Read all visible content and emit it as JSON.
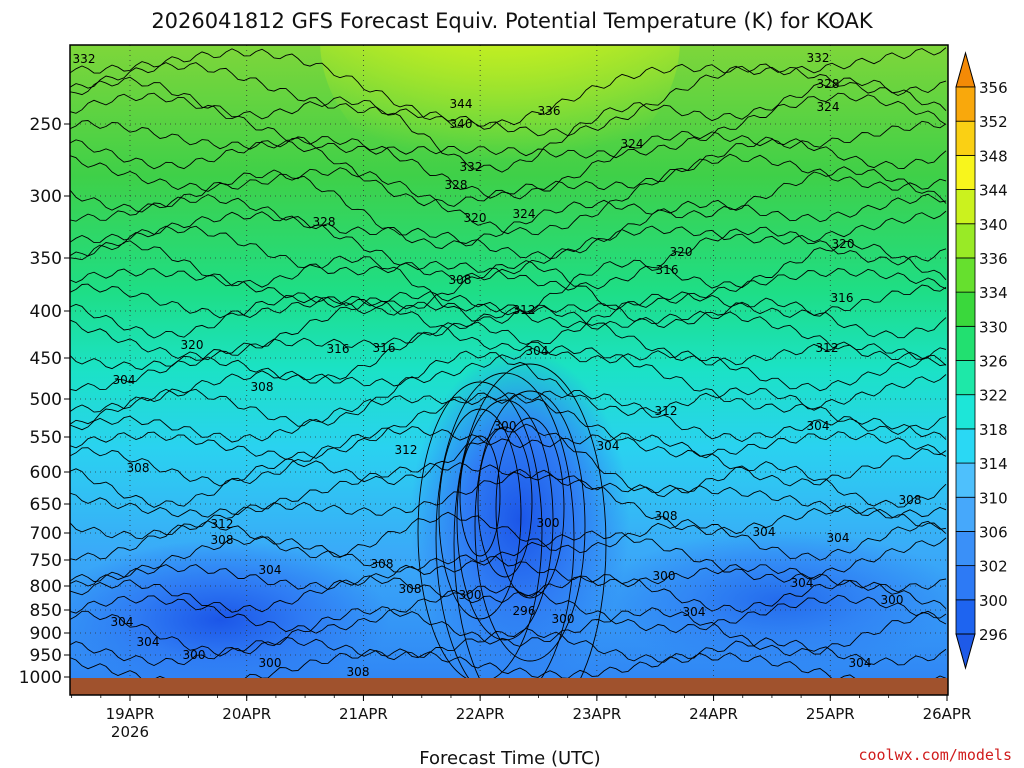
{
  "chart_data": {
    "type": "heatmap",
    "title": "2026041812 GFS Forecast Equiv. Potential Temperature (K) for KOAK",
    "xlabel": "Forecast Time (UTC)",
    "ylabel": "",
    "credit": "coolwx.com/models",
    "x_ticks": [
      {
        "label": "19APR",
        "sublabel": "2026",
        "hour": 12
      },
      {
        "label": "20APR",
        "sublabel": "",
        "hour": 36
      },
      {
        "label": "21APR",
        "sublabel": "",
        "hour": 60
      },
      {
        "label": "22APR",
        "sublabel": "",
        "hour": 84
      },
      {
        "label": "23APR",
        "sublabel": "",
        "hour": 108
      },
      {
        "label": "24APR",
        "sublabel": "",
        "hour": 132
      },
      {
        "label": "25APR",
        "sublabel": "",
        "hour": 156
      },
      {
        "label": "26APR",
        "sublabel": "",
        "hour": 180
      }
    ],
    "xlim_hours": [
      0,
      180
    ],
    "y_ticks": [
      "250",
      "300",
      "350",
      "400",
      "450",
      "500",
      "550",
      "600",
      "650",
      "700",
      "750",
      "800",
      "850",
      "900",
      "950",
      "1000"
    ],
    "y_tick_values": [
      250,
      300,
      350,
      400,
      450,
      500,
      550,
      600,
      650,
      700,
      750,
      800,
      850,
      900,
      950,
      1000
    ],
    "ylim_hpa": [
      200,
      1000
    ],
    "colorbar_levels": [
      "296",
      "300",
      "302",
      "306",
      "310",
      "314",
      "318",
      "322",
      "326",
      "330",
      "334",
      "336",
      "340",
      "344",
      "348",
      "352",
      "356"
    ],
    "colorbar_colors": [
      "#1e64f0",
      "#2d7af5",
      "#3a90f8",
      "#46a8fb",
      "#4ec0fc",
      "#2ad8f4",
      "#1de6d8",
      "#1ee8a8",
      "#22e070",
      "#3ad83c",
      "#66e02e",
      "#99ea26",
      "#cbf21e",
      "#f8f51c",
      "#fad014",
      "#f9a80c",
      "#f48a06"
    ],
    "contour_labels": [
      "332",
      "344",
      "340",
      "336",
      "332",
      "328",
      "324",
      "328",
      "320",
      "324",
      "332",
      "328",
      "324",
      "308",
      "320",
      "316",
      "312",
      "320",
      "316",
      "320",
      "316",
      "304",
      "316",
      "312",
      "312",
      "300",
      "304",
      "312",
      "308",
      "312",
      "308",
      "304",
      "304",
      "300",
      "304",
      "308",
      "300",
      "296",
      "300",
      "300",
      "300",
      "308",
      "304",
      "308",
      "304",
      "308",
      "304",
      "300",
      "304",
      "300",
      "304",
      "308",
      "304",
      "304",
      "308"
    ],
    "ground_color": "#a0522d"
  }
}
